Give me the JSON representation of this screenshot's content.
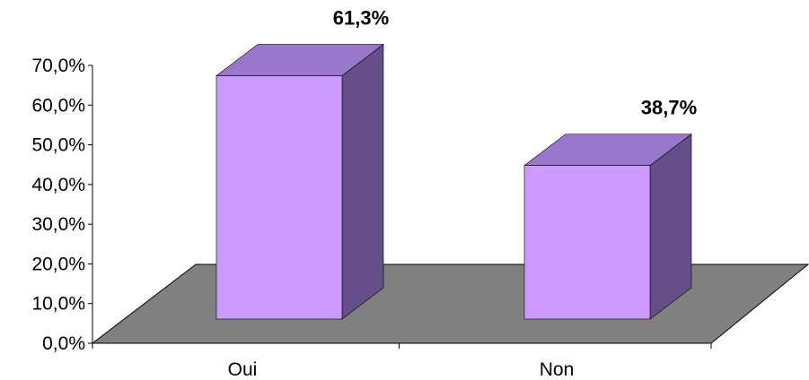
{
  "chart_data": {
    "type": "bar",
    "categories": [
      "Oui",
      "Non"
    ],
    "values": [
      61.3,
      38.7
    ],
    "data_labels": [
      "61,3%",
      "38,7%"
    ],
    "y_ticks": [
      "0,0%",
      "10,0%",
      "20,0%",
      "30,0%",
      "40,0%",
      "50,0%",
      "60,0%",
      "70,0%"
    ],
    "ylim": [
      0,
      70
    ],
    "title": "",
    "xlabel": "",
    "ylabel": "",
    "grid": false,
    "style": "3d",
    "colors": {
      "bar_front": "#cc99ff",
      "bar_top": "#9977cc",
      "bar_side": "#664f88",
      "floor": "#808080",
      "axis": "#000000"
    }
  }
}
